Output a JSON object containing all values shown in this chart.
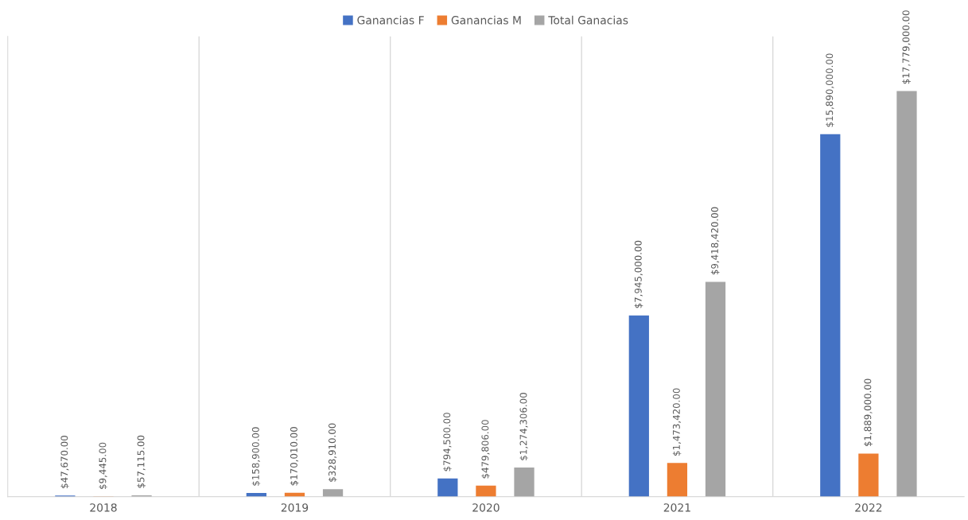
{
  "chart_data": {
    "type": "bar",
    "categories": [
      "2018",
      "2019",
      "2020",
      "2021",
      "2022"
    ],
    "series": [
      {
        "name": "Ganancias F",
        "color": "#4472c4",
        "values": [
          47670,
          158900,
          794500,
          7945000,
          15890000
        ],
        "value_labels": [
          "$47,670.00",
          "$158,900.00",
          "$794,500.00",
          "$7,945,000.00",
          "$15,890,000.00"
        ]
      },
      {
        "name": "Ganancias M",
        "color": "#ed7d31",
        "values": [
          9445,
          170010,
          479806,
          1473420,
          1889000
        ],
        "value_labels": [
          "$9,445.00",
          "$170,010.00",
          "$479,806.00",
          "$1,473,420.00",
          "$1,889,000.00"
        ]
      },
      {
        "name": "Total Ganacias",
        "color": "#a5a5a5",
        "values": [
          57115,
          328910,
          1274306,
          9418420,
          17779000
        ],
        "value_labels": [
          "$57,115.00",
          "$328,910.00",
          "$1,274,306.00",
          "$9,418,420.00",
          "$17,779,000.00"
        ]
      }
    ],
    "grid": "x",
    "legend": "top",
    "tick_labels": "x"
  }
}
